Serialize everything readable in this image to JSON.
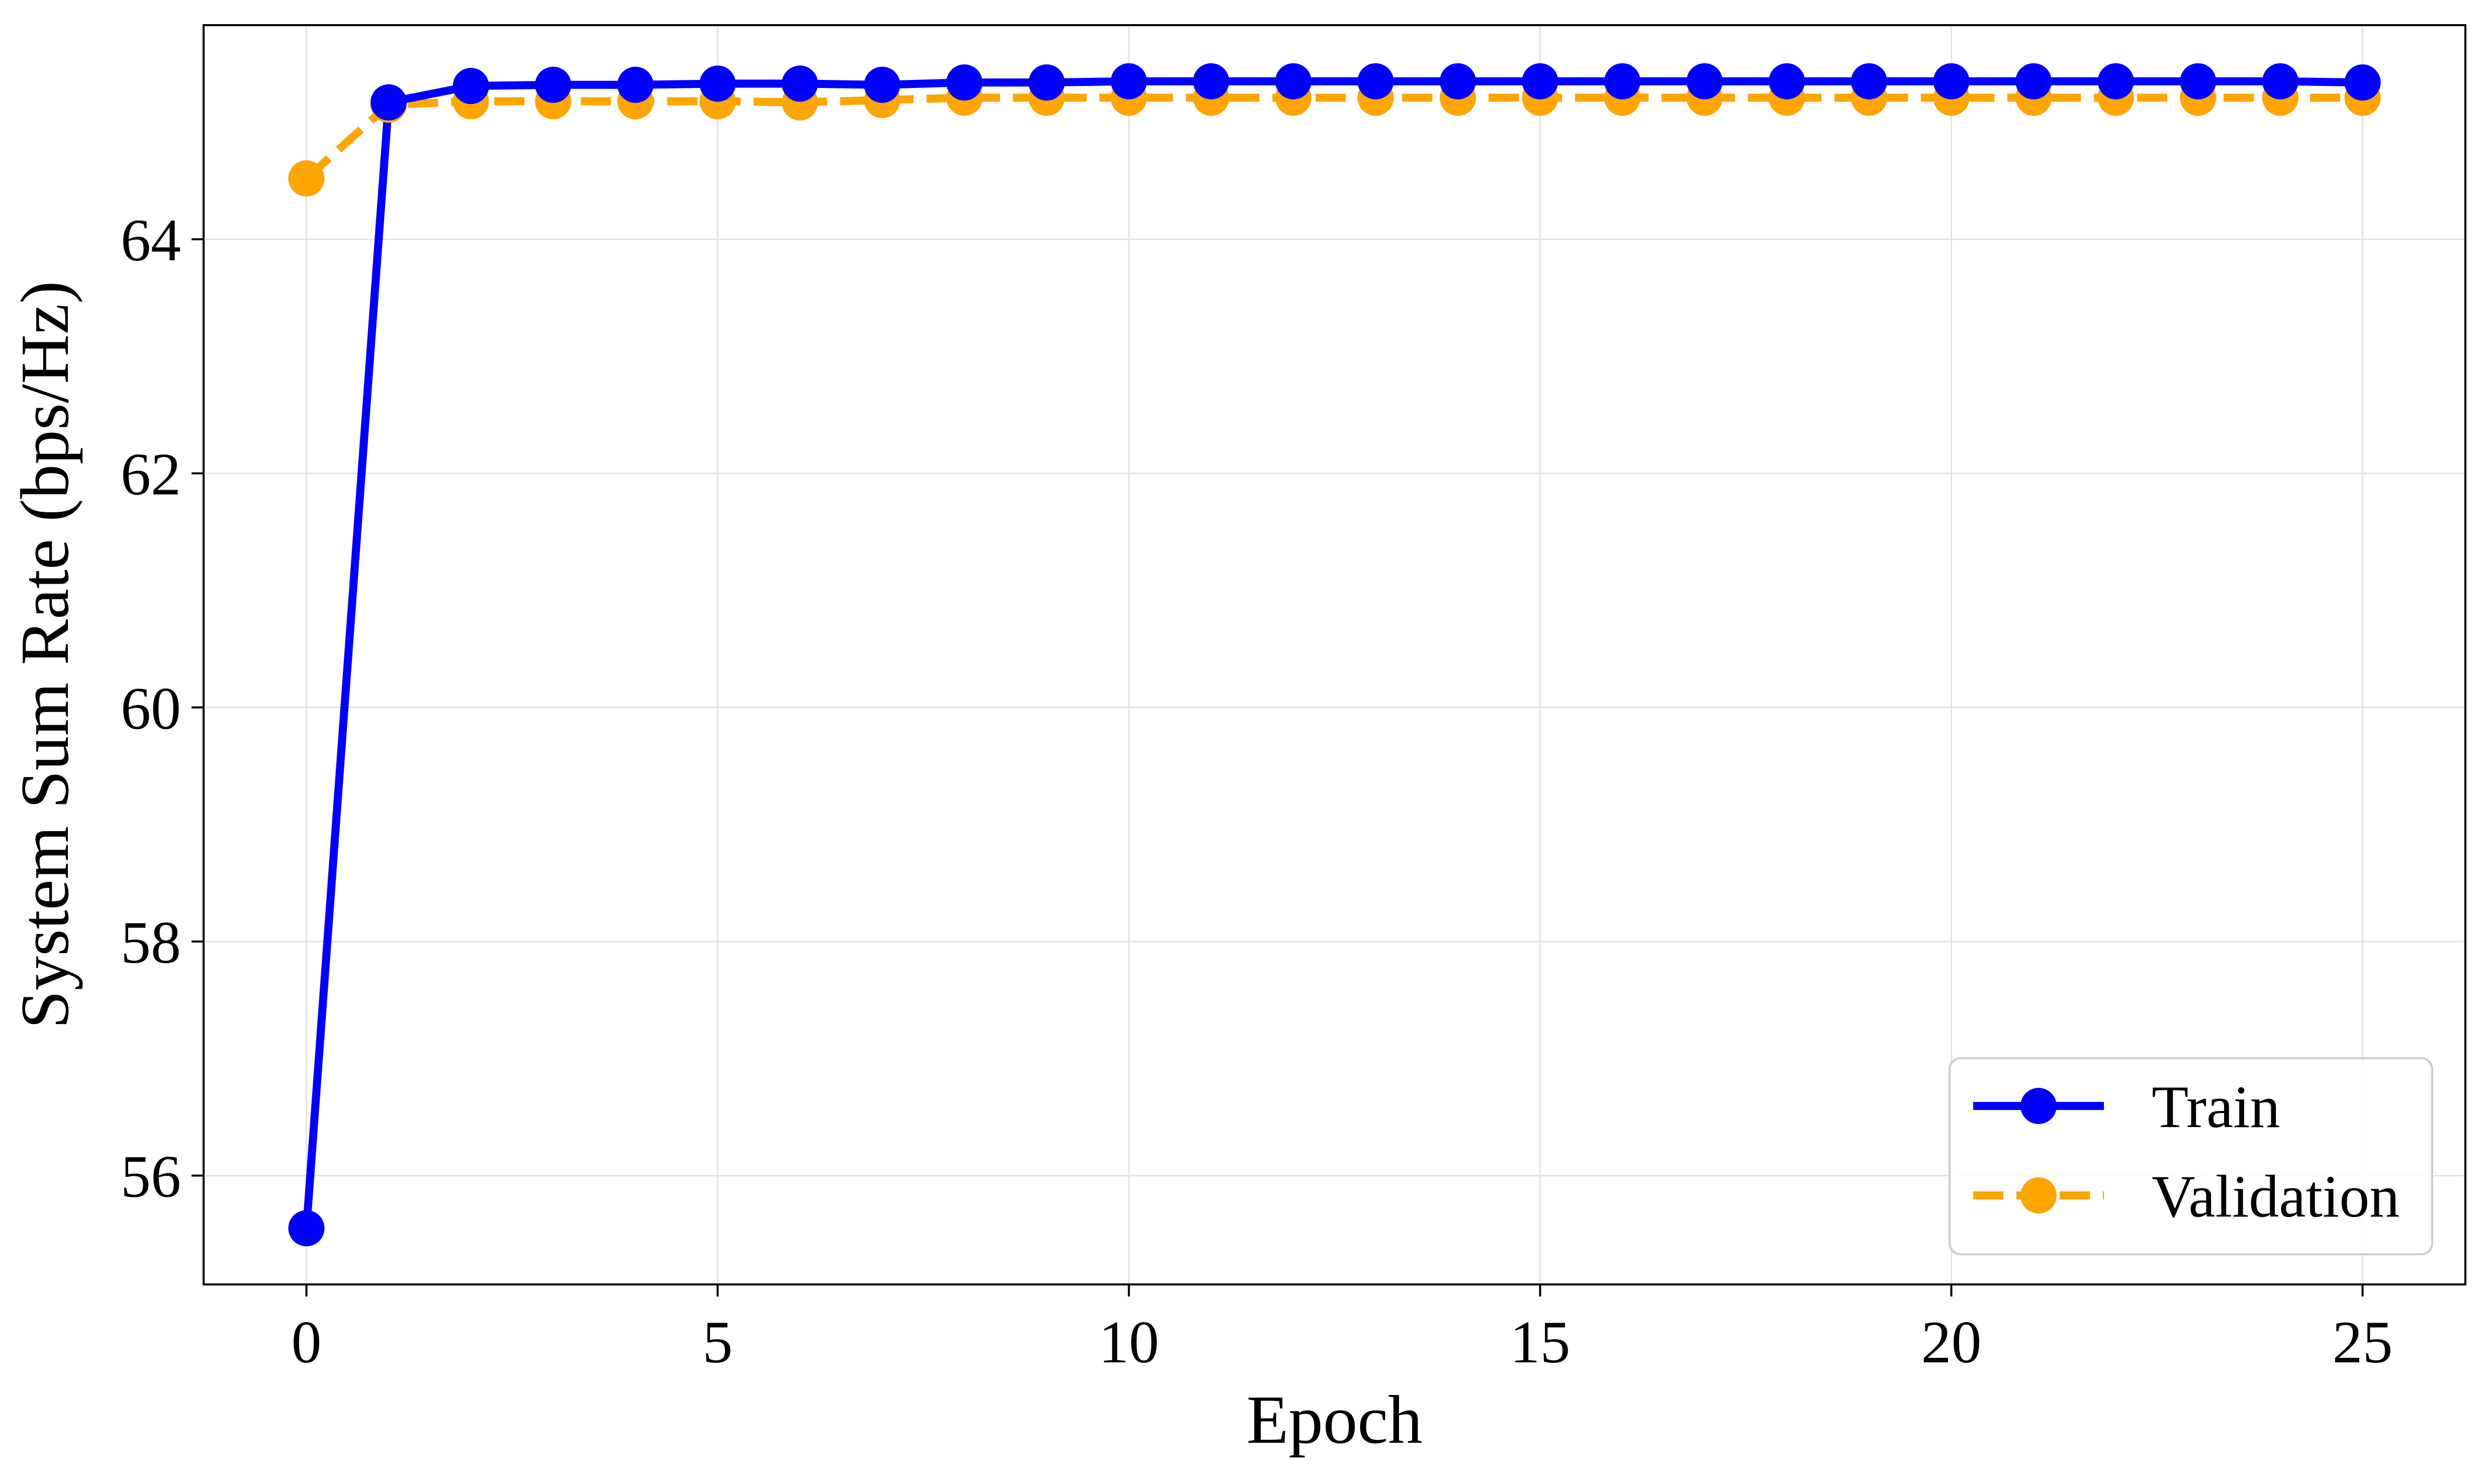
{
  "chart_data": {
    "type": "line",
    "title": "",
    "xlabel": "Epoch",
    "ylabel": "System Sum Rate (bps/Hz)",
    "xlim": [
      -1.25,
      26.25
    ],
    "ylim": [
      55.07,
      65.83
    ],
    "xticks": [
      0,
      5,
      10,
      15,
      20,
      25
    ],
    "yticks": [
      56,
      58,
      60,
      62,
      64
    ],
    "grid": true,
    "legend_position": "lower-right",
    "x": [
      0,
      1,
      2,
      3,
      4,
      5,
      6,
      7,
      8,
      9,
      10,
      11,
      12,
      13,
      14,
      15,
      16,
      17,
      18,
      19,
      20,
      21,
      22,
      23,
      24,
      25
    ],
    "series": [
      {
        "name": "Train",
        "color": "#0000ff",
        "line_style": "solid",
        "marker": "circle",
        "values": [
          55.55,
          65.17,
          65.31,
          65.32,
          65.32,
          65.33,
          65.33,
          65.32,
          65.34,
          65.34,
          65.35,
          65.35,
          65.35,
          65.35,
          65.35,
          65.35,
          65.35,
          65.35,
          65.35,
          65.35,
          65.35,
          65.35,
          65.35,
          65.35,
          65.35,
          65.34
        ]
      },
      {
        "name": "Validation",
        "color": "#ffa500",
        "line_style": "dashed",
        "marker": "circle",
        "values": [
          64.52,
          65.15,
          65.18,
          65.18,
          65.18,
          65.18,
          65.17,
          65.19,
          65.21,
          65.21,
          65.21,
          65.21,
          65.21,
          65.21,
          65.21,
          65.21,
          65.21,
          65.21,
          65.21,
          65.21,
          65.21,
          65.21,
          65.21,
          65.21,
          65.21,
          65.21
        ]
      }
    ]
  }
}
